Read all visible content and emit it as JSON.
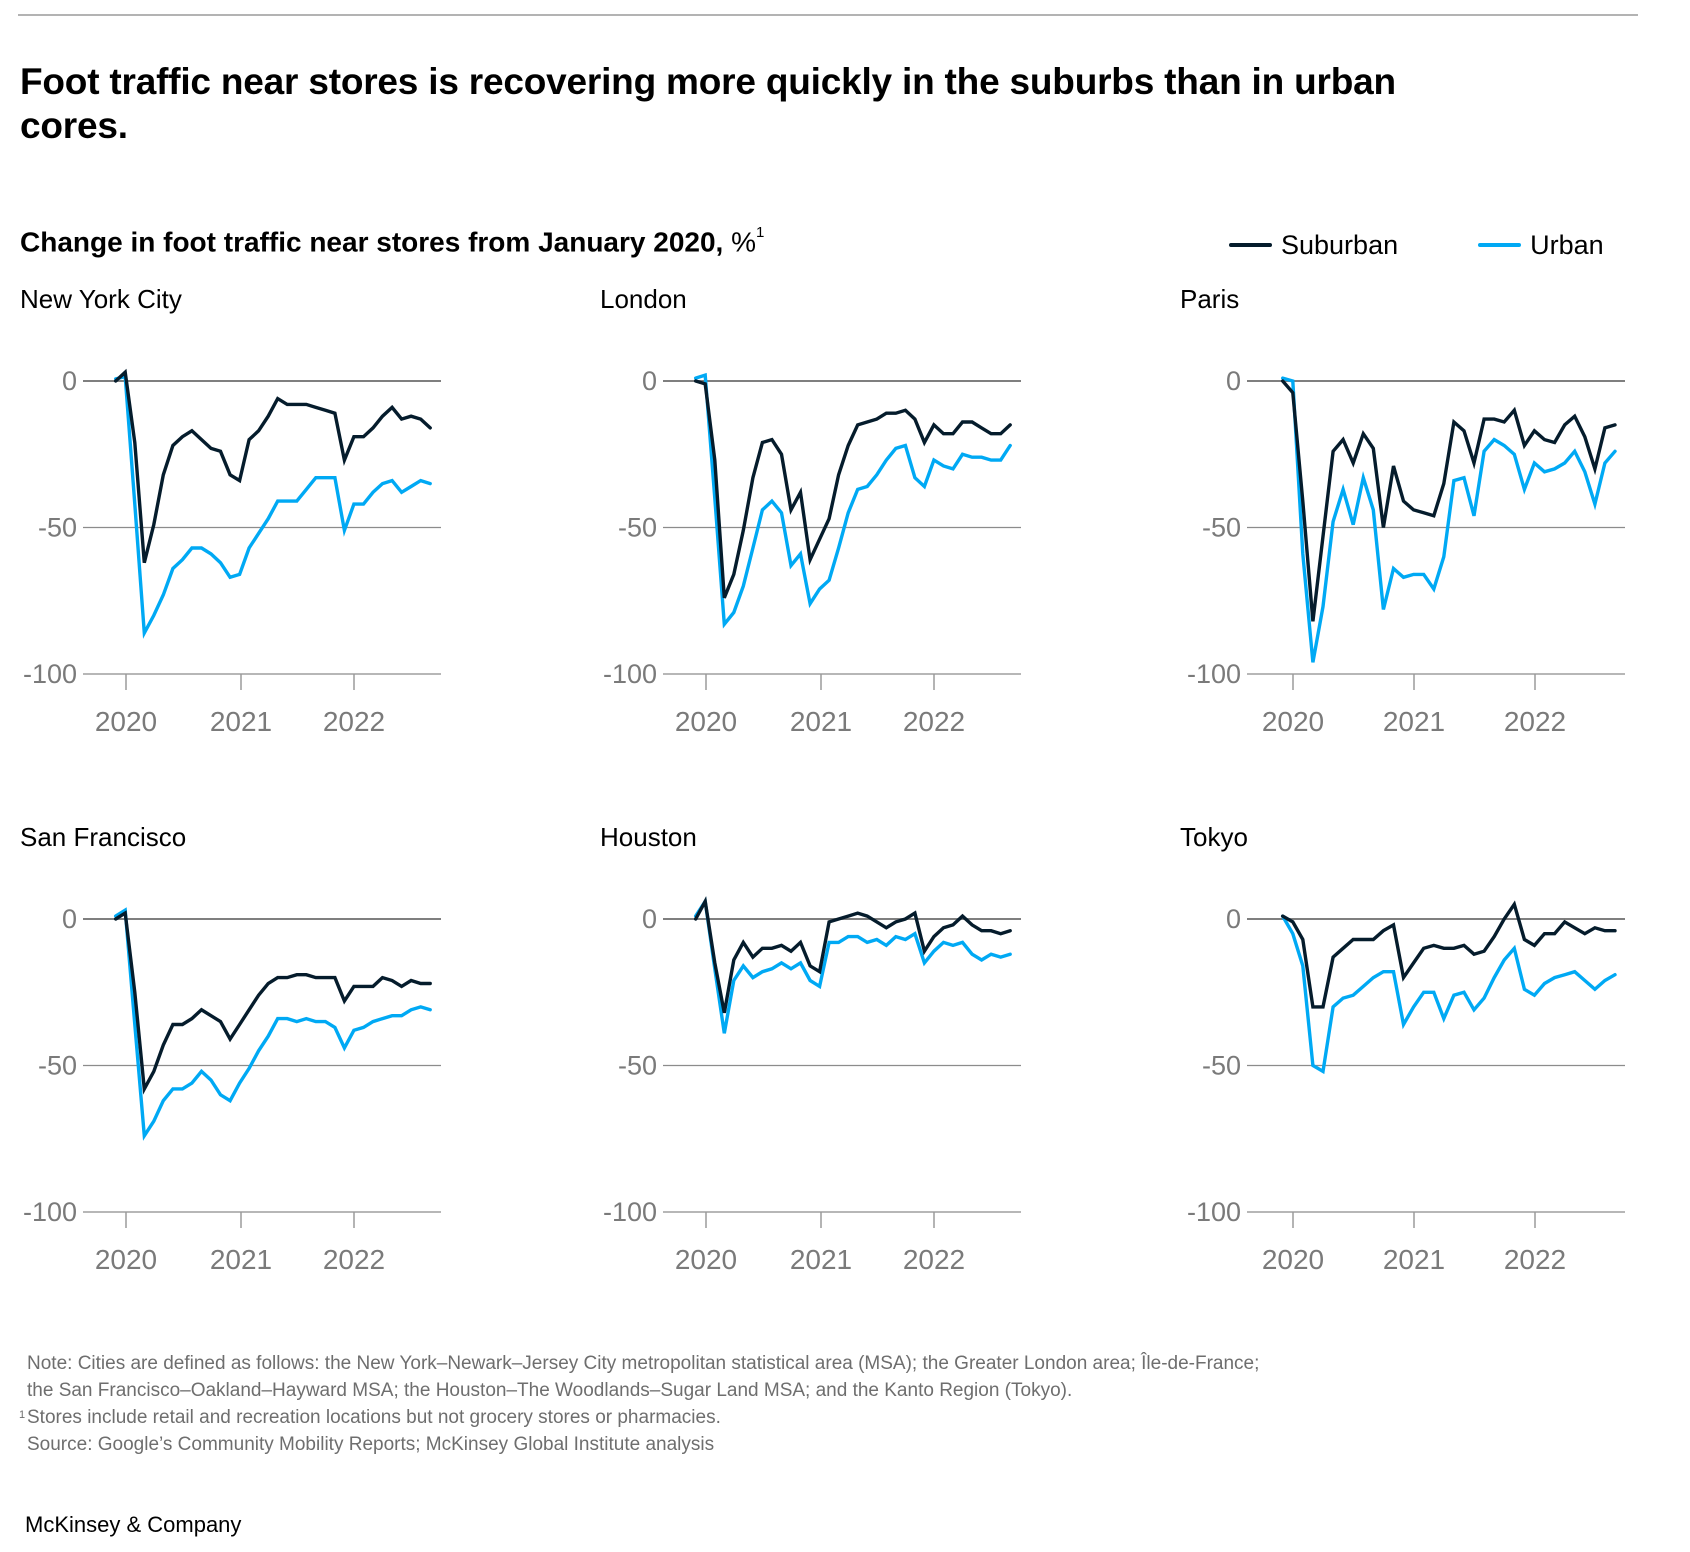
{
  "header": {
    "title": "Foot traffic near stores is recovering more quickly in the suburbs than in urban cores.",
    "subtitle_bold": "Change in foot traffic near stores from January 2020,",
    "subtitle_unit": "%",
    "subtitle_footnote_mark": "1"
  },
  "legend": [
    {
      "label": "Suburban",
      "color": "#051c2c"
    },
    {
      "label": "Urban",
      "color": "#00a9f4"
    }
  ],
  "chart_data": [
    {
      "type": "line",
      "title": "New York City",
      "xlabel": "",
      "ylabel": "",
      "x_unit": "months since Dec 2019 (0 = Dec 2019)",
      "x_tick_labels": [
        "2020",
        "2021",
        "2022"
      ],
      "y_ticks": [
        0,
        -50,
        -100
      ],
      "y_tick_labels": [
        "0",
        "-50",
        "-100"
      ],
      "ylim": [
        -100,
        0
      ],
      "grid": true,
      "series": [
        {
          "name": "Suburban",
          "color": "#051c2c",
          "values": [
            0,
            3,
            -21,
            -62,
            -49,
            -32,
            -22,
            -19,
            -17,
            -20,
            -23,
            -24,
            -32,
            -34,
            -20,
            -17,
            -12,
            -6,
            -8,
            -8,
            -8,
            -9,
            -10,
            -11,
            -27,
            -19,
            -19,
            -16,
            -12,
            -9,
            -13,
            -12,
            -13,
            -16
          ]
        },
        {
          "name": "Urban",
          "color": "#00a9f4",
          "values": [
            0.7,
            1.5,
            -42,
            -86,
            -80,
            -73,
            -64,
            -61,
            -57,
            -57,
            -59,
            -62,
            -67,
            -66,
            -57,
            -52,
            -47,
            -41,
            -41,
            -41,
            -37,
            -33,
            -33,
            -33,
            -51,
            -42,
            -42,
            -38,
            -35,
            -34,
            -38,
            -36,
            -34,
            -35
          ]
        }
      ]
    },
    {
      "type": "line",
      "title": "London",
      "xlabel": "",
      "ylabel": "",
      "x_tick_labels": [
        "2020",
        "2021",
        "2022"
      ],
      "y_ticks": [
        0,
        -50,
        -100
      ],
      "y_tick_labels": [
        "0",
        "-50",
        "-100"
      ],
      "ylim": [
        -100,
        0
      ],
      "grid": true,
      "series": [
        {
          "name": "Suburban",
          "color": "#051c2c",
          "values": [
            0,
            -1,
            -27,
            -74,
            -66,
            -51,
            -33,
            -21,
            -20,
            -25,
            -44,
            -38,
            -61,
            -54,
            -47,
            -32,
            -22,
            -15,
            -14,
            -13,
            -11,
            -11,
            -10,
            -13,
            -21,
            -15,
            -18,
            -18,
            -14,
            -14,
            -16,
            -18,
            -18,
            -15
          ]
        },
        {
          "name": "Urban",
          "color": "#00a9f4",
          "values": [
            1,
            2,
            -40,
            -83,
            -79,
            -70,
            -57,
            -44,
            -41,
            -45,
            -63,
            -59,
            -76,
            -71,
            -68,
            -57,
            -45,
            -37,
            -36,
            -32,
            -27,
            -23,
            -22,
            -33,
            -36,
            -27,
            -29,
            -30,
            -25,
            -26,
            -26,
            -27,
            -27,
            -22
          ]
        }
      ]
    },
    {
      "type": "line",
      "title": "Paris",
      "xlabel": "",
      "ylabel": "",
      "x_tick_labels": [
        "2020",
        "2021",
        "2022"
      ],
      "y_ticks": [
        0,
        -50,
        -100
      ],
      "y_tick_labels": [
        "0",
        "-50",
        "-100"
      ],
      "ylim": [
        -100,
        0
      ],
      "grid": true,
      "series": [
        {
          "name": "Suburban",
          "color": "#051c2c",
          "values": [
            0,
            -4,
            -41,
            -82,
            -53,
            -24,
            -20,
            -28,
            -18,
            -23,
            -50,
            -29,
            -41,
            -44,
            -45,
            -46,
            -35,
            -14,
            -17,
            -28,
            -13,
            -13,
            -14,
            -10,
            -22,
            -17,
            -20,
            -21,
            -15,
            -12,
            -19,
            -30,
            -16,
            -15
          ]
        },
        {
          "name": "Urban",
          "color": "#00a9f4",
          "values": [
            1,
            0,
            -59,
            -96,
            -77,
            -48,
            -37,
            -49,
            -33,
            -44,
            -78,
            -64,
            -67,
            -66,
            -66,
            -71,
            -60,
            -34,
            -33,
            -46,
            -24,
            -20,
            -22,
            -25,
            -37,
            -28,
            -31,
            -30,
            -28,
            -24,
            -31,
            -42,
            -28,
            -24
          ]
        }
      ]
    },
    {
      "type": "line",
      "title": "San Francisco",
      "xlabel": "",
      "ylabel": "",
      "x_tick_labels": [
        "2020",
        "2021",
        "2022"
      ],
      "y_ticks": [
        0,
        -50,
        -100
      ],
      "y_tick_labels": [
        "0",
        "-50",
        "-100"
      ],
      "ylim": [
        -100,
        0
      ],
      "grid": true,
      "series": [
        {
          "name": "Suburban",
          "color": "#051c2c",
          "values": [
            0,
            2,
            -25,
            -58,
            -52,
            -43,
            -36,
            -36,
            -34,
            -31,
            -33,
            -35,
            -41,
            -36,
            -31,
            -26,
            -22,
            -20,
            -20,
            -19,
            -19,
            -20,
            -20,
            -20,
            -28,
            -23,
            -23,
            -23,
            -20,
            -21,
            -23,
            -21,
            -22,
            -22
          ]
        },
        {
          "name": "Urban",
          "color": "#00a9f4",
          "values": [
            1,
            3,
            -36,
            -74,
            -69,
            -62,
            -58,
            -58,
            -56,
            -52,
            -55,
            -60,
            -62,
            -56,
            -51,
            -45,
            -40,
            -34,
            -34,
            -35,
            -34,
            -35,
            -35,
            -37,
            -44,
            -38,
            -37,
            -35,
            -34,
            -33,
            -33,
            -31,
            -30,
            -31
          ]
        }
      ]
    },
    {
      "type": "line",
      "title": "Houston",
      "xlabel": "",
      "ylabel": "",
      "x_tick_labels": [
        "2020",
        "2021",
        "2022"
      ],
      "y_ticks": [
        0,
        -50,
        -100
      ],
      "y_tick_labels": [
        "0",
        "-50",
        "-100"
      ],
      "ylim": [
        -100,
        0
      ],
      "grid": true,
      "series": [
        {
          "name": "Suburban",
          "color": "#051c2c",
          "values": [
            0,
            6,
            -15,
            -32,
            -14,
            -8,
            -13,
            -10,
            -10,
            -9,
            -11,
            -8,
            -16,
            -18,
            -1,
            0,
            1,
            2,
            1,
            -1,
            -3,
            -1,
            0,
            2,
            -11,
            -6,
            -3,
            -2,
            1,
            -2,
            -4,
            -4,
            -5,
            -4
          ]
        },
        {
          "name": "Urban",
          "color": "#00a9f4",
          "values": [
            1,
            6,
            -17,
            -39,
            -21,
            -16,
            -20,
            -18,
            -17,
            -15,
            -17,
            -15,
            -21,
            -23,
            -8,
            -8,
            -6,
            -6,
            -8,
            -7,
            -9,
            -6,
            -7,
            -5,
            -15,
            -11,
            -8,
            -9,
            -8,
            -12,
            -14,
            -12,
            -13,
            -12
          ]
        }
      ]
    },
    {
      "type": "line",
      "title": "Tokyo",
      "xlabel": "",
      "ylabel": "",
      "x_tick_labels": [
        "2020",
        "2021",
        "2022"
      ],
      "y_ticks": [
        0,
        -50,
        -100
      ],
      "y_tick_labels": [
        "0",
        "-50",
        "-100"
      ],
      "ylim": [
        -100,
        0
      ],
      "grid": true,
      "series": [
        {
          "name": "Suburban",
          "color": "#051c2c",
          "values": [
            1,
            -1,
            -7,
            -30,
            -30,
            -13,
            -10,
            -7,
            -7,
            -7,
            -4,
            -2,
            -20,
            -15,
            -10,
            -9,
            -10,
            -10,
            -9,
            -12,
            -11,
            -6,
            0,
            5,
            -7,
            -9,
            -5,
            -5,
            -1,
            -3,
            -5,
            -3,
            -4,
            -4
          ]
        },
        {
          "name": "Urban",
          "color": "#00a9f4",
          "values": [
            1,
            -5,
            -16,
            -50,
            -52,
            -30,
            -27,
            -26,
            -23,
            -20,
            -18,
            -18,
            -36,
            -30,
            -25,
            -25,
            -34,
            -26,
            -25,
            -31,
            -27,
            -20,
            -14,
            -10,
            -24,
            -26,
            -22,
            -20,
            -19,
            -18,
            -21,
            -24,
            -21,
            -19
          ]
        }
      ]
    }
  ],
  "notes": {
    "line1": "Note: Cities are defined as follows: the New York–Newark–Jersey City metropolitan statistical area (MSA); the Greater London area; Île-de-France;",
    "line2": "the San Francisco–Oakland–Hayward MSA; the Houston–The Woodlands–Sugar Land MSA; and the Kanto Region (Tokyo).",
    "footnote_mark": "1",
    "footnote": "Stores include retail and recreation locations but not grocery stores or pharmacies.",
    "source": "Source: Google’s Community Mobility Reports; McKinsey Global Institute analysis"
  },
  "brand": "McKinsey & Company"
}
